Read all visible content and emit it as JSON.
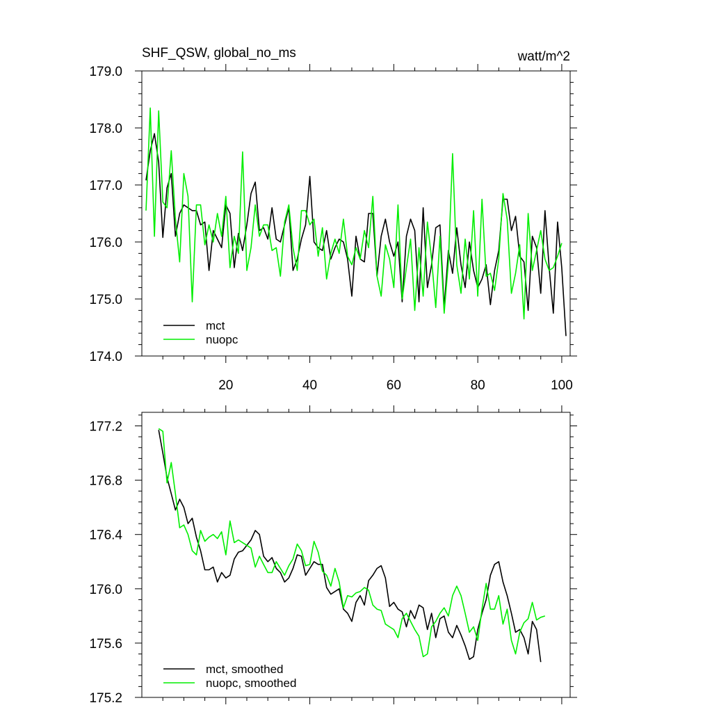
{
  "header": {
    "title": "SHF_QSW, global_no_ms",
    "units": "watt/m^2"
  },
  "colors": {
    "mct": "#000000",
    "nuopc": "#00ee00"
  },
  "chart_data": [
    {
      "type": "line",
      "title": "SHF_QSW, global_no_ms",
      "units": "watt/m^2",
      "xlim": [
        0,
        102
      ],
      "ylim": [
        174.0,
        179.0
      ],
      "xticks": [
        20,
        40,
        60,
        80,
        100
      ],
      "yticks": [
        174.0,
        175.0,
        176.0,
        177.0,
        178.0,
        179.0
      ],
      "ytick_labels": [
        "174.0",
        "175.0",
        "176.0",
        "177.0",
        "178.0",
        "179.0"
      ],
      "xtick_labels": [
        "20",
        "40",
        "60",
        "80",
        "100"
      ],
      "legend": {
        "position": "bottom-left",
        "labels": [
          "mct",
          "nuopc"
        ]
      },
      "series": [
        {
          "name": "mct",
          "color": "#000000",
          "x_start": 1,
          "values": [
            177.08,
            177.6,
            177.9,
            177.4,
            176.08,
            176.95,
            177.2,
            176.1,
            176.5,
            176.65,
            176.6,
            176.55,
            176.55,
            176.3,
            176.35,
            175.5,
            176.2,
            176.05,
            175.9,
            176.65,
            176.5,
            175.55,
            176.15,
            175.85,
            176.3,
            176.85,
            177.05,
            176.2,
            176.25,
            176.05,
            176.6,
            176.05,
            176.0,
            176.3,
            176.6,
            175.5,
            175.7,
            176.05,
            176.3,
            177.15,
            176.0,
            175.9,
            175.85,
            176.2,
            175.7,
            175.9,
            176.05,
            176.0,
            175.7,
            175.05,
            176.1,
            175.7,
            175.65,
            176.5,
            176.5,
            175.4,
            176.1,
            176.4,
            176.0,
            175.75,
            176.0,
            174.95,
            176.1,
            176.4,
            176.2,
            174.95,
            176.6,
            175.2,
            175.6,
            176.25,
            176.3,
            174.85,
            175.85,
            175.45,
            176.25,
            175.6,
            175.2,
            176.0,
            175.5,
            175.2,
            175.35,
            175.6,
            174.9,
            175.5,
            175.85,
            176.75,
            176.75,
            176.2,
            176.45,
            175.75,
            175.65,
            174.8,
            176.1,
            175.9,
            175.1,
            176.55,
            175.55,
            174.75,
            176.35,
            175.55,
            174.35
          ]
        },
        {
          "name": "nuopc",
          "color": "#00ee00",
          "x_start": 1,
          "values": [
            176.55,
            178.35,
            176.1,
            178.3,
            176.7,
            176.6,
            177.6,
            176.4,
            175.65,
            177.2,
            176.8,
            174.95,
            176.65,
            176.65,
            175.95,
            176.3,
            176.0,
            176.5,
            176.1,
            176.8,
            175.55,
            176.1,
            175.8,
            177.58,
            175.5,
            175.9,
            176.65,
            176.1,
            176.3,
            176.3,
            175.85,
            175.9,
            175.4,
            176.35,
            176.65,
            175.9,
            175.5,
            176.55,
            176.55,
            176.3,
            176.4,
            175.75,
            176.25,
            175.35,
            175.8,
            176.05,
            175.8,
            176.4,
            175.75,
            175.6,
            175.9,
            175.7,
            176.2,
            175.9,
            176.8,
            175.4,
            175.05,
            175.95,
            175.7,
            175.2,
            176.65,
            175.0,
            175.55,
            176.05,
            174.8,
            175.9,
            175.05,
            176.35,
            175.7,
            174.85,
            176.1,
            174.75,
            175.65,
            177.55,
            175.6,
            175.1,
            176.05,
            175.35,
            176.55,
            175.05,
            176.75,
            175.4,
            175.45,
            175.15,
            175.7,
            176.85,
            176.4,
            175.1,
            175.45,
            175.95,
            174.65,
            176.5,
            175.5,
            175.85,
            176.2,
            175.7,
            175.5,
            175.55,
            175.75,
            175.98
          ]
        }
      ]
    },
    {
      "type": "line",
      "xlim": [
        0,
        102
      ],
      "ylim": [
        175.2,
        177.3
      ],
      "xticks": [
        20,
        40,
        60,
        80,
        100
      ],
      "yticks": [
        175.2,
        175.6,
        176.0,
        176.4,
        176.8,
        177.2
      ],
      "ytick_labels": [
        "175.2",
        "175.6",
        "176.0",
        "176.4",
        "176.8",
        "177.2"
      ],
      "legend": {
        "position": "bottom-left",
        "labels": [
          "mct, smoothed",
          "nuopc, smoothed"
        ]
      },
      "series": [
        {
          "name": "mct, smoothed",
          "color": "#000000",
          "x_start": 4,
          "values": [
            177.17,
            177.0,
            176.82,
            176.7,
            176.58,
            176.66,
            176.6,
            176.48,
            176.52,
            176.38,
            176.28,
            176.14,
            176.14,
            176.16,
            176.05,
            176.12,
            176.08,
            176.1,
            176.22,
            176.27,
            176.28,
            176.32,
            176.36,
            176.43,
            176.4,
            176.24,
            176.2,
            176.23,
            176.15,
            176.12,
            176.05,
            176.08,
            176.15,
            176.25,
            176.24,
            176.1,
            176.15,
            176.2,
            176.18,
            176.18,
            176.01,
            175.96,
            175.98,
            176.0,
            175.85,
            175.82,
            175.76,
            175.9,
            175.95,
            175.88,
            176.06,
            176.1,
            176.15,
            176.17,
            176.08,
            175.87,
            175.9,
            175.85,
            175.83,
            175.72,
            175.84,
            175.78,
            175.88,
            175.86,
            175.7,
            175.82,
            175.64,
            175.78,
            175.8,
            175.68,
            175.64,
            175.73,
            175.66,
            175.58,
            175.48,
            175.5,
            175.7,
            175.82,
            175.92,
            176.1,
            176.18,
            176.2,
            176.05,
            175.95,
            175.82,
            175.68,
            175.7,
            175.64,
            175.52,
            175.76,
            175.7,
            175.46
          ]
        },
        {
          "name": "nuopc, smoothed",
          "color": "#00ee00",
          "x_start": 4,
          "values": [
            177.18,
            177.16,
            176.78,
            176.93,
            176.7,
            176.45,
            176.47,
            176.4,
            176.28,
            176.25,
            176.43,
            176.35,
            176.38,
            176.4,
            176.37,
            176.42,
            176.25,
            176.5,
            176.34,
            176.36,
            176.34,
            176.32,
            176.3,
            176.16,
            176.24,
            176.18,
            176.12,
            176.12,
            176.2,
            176.15,
            176.1,
            176.17,
            176.22,
            176.33,
            176.28,
            176.17,
            176.18,
            176.35,
            176.27,
            176.13,
            176.1,
            176.02,
            176.15,
            176.05,
            175.86,
            175.95,
            175.94,
            175.97,
            175.98,
            176.01,
            175.99,
            175.88,
            175.85,
            175.84,
            175.74,
            175.72,
            175.7,
            175.64,
            175.78,
            175.82,
            175.76,
            175.7,
            175.65,
            175.5,
            175.52,
            175.72,
            175.76,
            175.82,
            175.86,
            175.8,
            175.95,
            176.02,
            175.95,
            175.82,
            175.68,
            175.72,
            175.62,
            175.85,
            176.04,
            175.85,
            175.85,
            175.95,
            175.74,
            175.85,
            175.62,
            175.52,
            175.68,
            175.75,
            175.78,
            175.9,
            175.77,
            175.79,
            175.8
          ]
        }
      ]
    }
  ]
}
